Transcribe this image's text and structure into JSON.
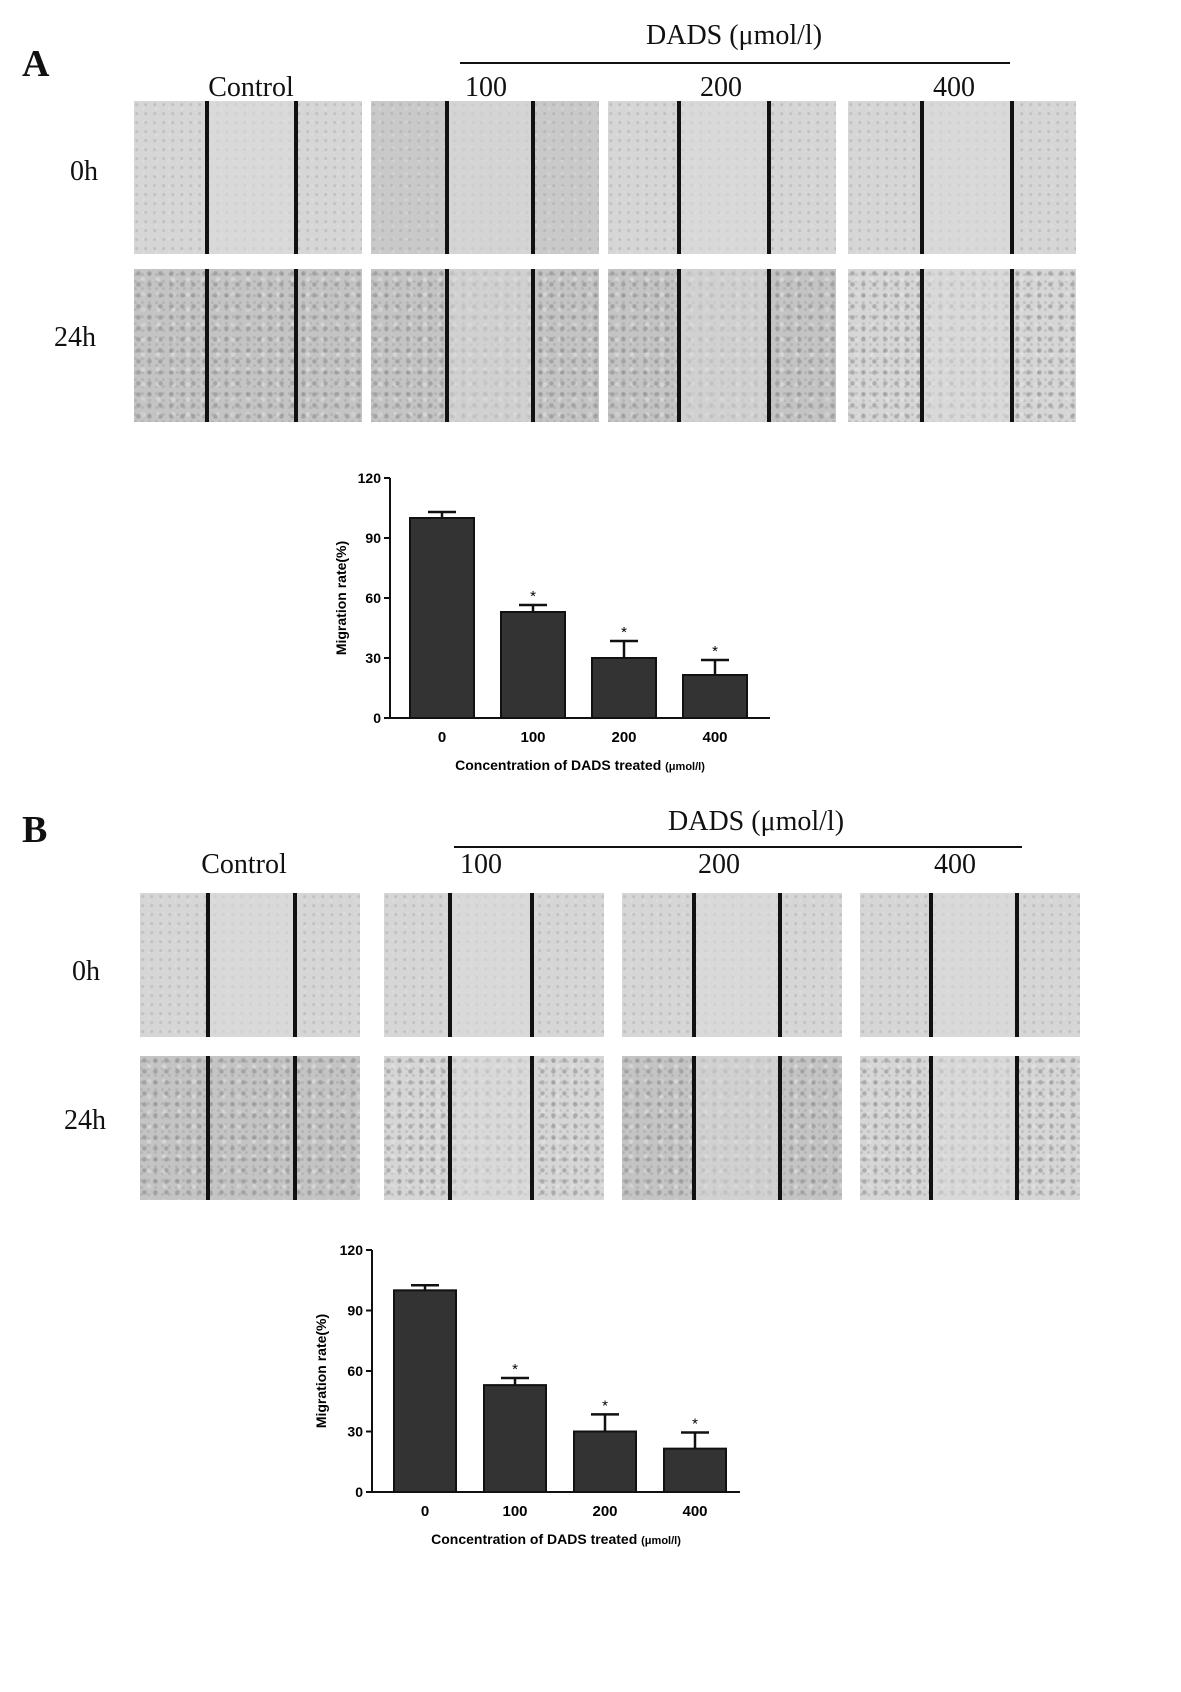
{
  "panels": [
    {
      "letter": "A",
      "dads_label": "DADS (μmol/l)",
      "columns": [
        "Control",
        "100",
        "200",
        "400"
      ],
      "rows": [
        "0h",
        "24h"
      ],
      "icon_micrographs": "wound-healing-micrograph",
      "chart_data": {
        "type": "bar",
        "categories": [
          "0",
          "100",
          "200",
          "400"
        ],
        "series": [
          {
            "values": [
              100,
              53,
              30,
              21.5
            ],
            "error": [
              3,
              3.5,
              8.5,
              7.5
            ]
          }
        ],
        "significance": [
          "",
          "*",
          "*",
          "*"
        ],
        "title": "",
        "xlabel": "Concentration of DADS treated",
        "xlabel_unit": "(μmol/l)",
        "ylabel": "Migration rate(%)",
        "ylim": [
          0,
          120
        ],
        "yticks": [
          0,
          30,
          60,
          90,
          120
        ],
        "bar_color": "#333333",
        "grid": false
      }
    },
    {
      "letter": "B",
      "dads_label": "DADS (μmol/l)",
      "columns": [
        "Control",
        "100",
        "200",
        "400"
      ],
      "rows": [
        "0h",
        "24h"
      ],
      "icon_micrographs": "wound-healing-micrograph",
      "chart_data": {
        "type": "bar",
        "categories": [
          "0",
          "100",
          "200",
          "400"
        ],
        "series": [
          {
            "values": [
              100,
              53,
              30,
              21.5
            ],
            "error": [
              2.5,
              3.5,
              8.5,
              8
            ]
          }
        ],
        "significance": [
          "",
          "*",
          "*",
          "*"
        ],
        "title": "",
        "xlabel": "Concentration of DADS treated",
        "xlabel_unit": "(μmol/l)",
        "ylabel": "Migration rate(%)",
        "ylim": [
          0,
          120
        ],
        "yticks": [
          0,
          30,
          60,
          90,
          120
        ],
        "bar_color": "#333333",
        "grid": false
      }
    }
  ]
}
